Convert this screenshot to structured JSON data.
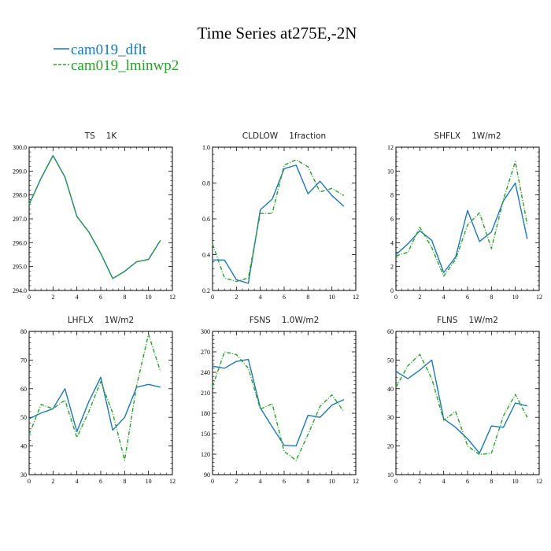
{
  "figure": {
    "title": "Time Series at275E,-2N",
    "legend": [
      {
        "label": "cam019_dflt",
        "color": "#1f77b4",
        "dash": false
      },
      {
        "label": "cam019_lminwp2",
        "color": "#2ca02c",
        "dash": true
      }
    ]
  },
  "chart_data": [
    {
      "type": "line",
      "title": "TS",
      "units": "1K",
      "xlim": [
        0,
        12
      ],
      "xticks": [
        0,
        2,
        4,
        6,
        8,
        10,
        12
      ],
      "ylim": [
        294.0,
        300.0
      ],
      "yticks": [
        "294.0",
        "295.0",
        "296.0",
        "297.0",
        "298.0",
        "299.0",
        "300.0"
      ],
      "x": [
        0,
        1,
        2,
        3,
        4,
        5,
        6,
        7,
        8,
        9,
        10,
        11
      ],
      "series": [
        {
          "name": "cam019_dflt",
          "values": [
            297.6,
            298.7,
            299.65,
            298.75,
            297.1,
            296.45,
            295.55,
            294.5,
            294.8,
            295.2,
            295.3,
            296.1
          ]
        },
        {
          "name": "cam019_lminwp2",
          "values": [
            297.6,
            298.7,
            299.65,
            298.75,
            297.1,
            296.45,
            295.55,
            294.5,
            294.8,
            295.2,
            295.3,
            296.1
          ]
        }
      ]
    },
    {
      "type": "line",
      "title": "CLDLOW",
      "units": "1fraction",
      "xlim": [
        0,
        12
      ],
      "xticks": [
        0,
        2,
        4,
        6,
        8,
        10,
        12
      ],
      "ylim": [
        0.2,
        1.0
      ],
      "yticks": [
        "0.2",
        "0.4",
        "0.6",
        "0.8",
        "1.0"
      ],
      "x": [
        0,
        1,
        2,
        3,
        4,
        5,
        6,
        7,
        8,
        9,
        10,
        11
      ],
      "series": [
        {
          "name": "cam019_dflt",
          "values": [
            0.37,
            0.37,
            0.26,
            0.24,
            0.65,
            0.71,
            0.88,
            0.9,
            0.74,
            0.81,
            0.73,
            0.67
          ]
        },
        {
          "name": "cam019_lminwp2",
          "values": [
            0.46,
            0.27,
            0.25,
            0.27,
            0.63,
            0.63,
            0.9,
            0.93,
            0.89,
            0.75,
            0.77,
            0.73
          ]
        }
      ]
    },
    {
      "type": "line",
      "title": "SHFLX",
      "units": "1W/m2",
      "xlim": [
        0,
        12
      ],
      "xticks": [
        0,
        2,
        4,
        6,
        8,
        10,
        12
      ],
      "ylim": [
        0,
        12
      ],
      "yticks": [
        "0",
        "2",
        "4",
        "6",
        "8",
        "10",
        "12"
      ],
      "x": [
        0,
        1,
        2,
        3,
        4,
        5,
        6,
        7,
        8,
        9,
        10,
        11
      ],
      "series": [
        {
          "name": "cam019_dflt",
          "values": [
            3.0,
            3.9,
            5.0,
            4.2,
            1.5,
            2.8,
            6.7,
            4.1,
            4.9,
            7.5,
            9.0,
            4.3
          ]
        },
        {
          "name": "cam019_lminwp2",
          "values": [
            2.9,
            3.2,
            5.3,
            3.6,
            1.2,
            2.6,
            5.5,
            6.5,
            3.5,
            7.6,
            10.8,
            5.5
          ]
        }
      ]
    },
    {
      "type": "line",
      "title": "LHFLX",
      "units": "1W/m2",
      "xlim": [
        0,
        12
      ],
      "xticks": [
        0,
        2,
        4,
        6,
        8,
        10,
        12
      ],
      "ylim": [
        30,
        80
      ],
      "yticks": [
        "30",
        "40",
        "50",
        "60",
        "70",
        "80"
      ],
      "x": [
        0,
        1,
        2,
        3,
        4,
        5,
        6,
        7,
        8,
        9,
        10,
        11
      ],
      "series": [
        {
          "name": "cam019_dflt",
          "values": [
            49.5,
            51.5,
            53.0,
            60.0,
            45.0,
            55.5,
            64.0,
            45.5,
            50.0,
            60.5,
            61.5,
            60.5
          ]
        },
        {
          "name": "cam019_lminwp2",
          "values": [
            44.0,
            54.5,
            53.0,
            56.0,
            43.0,
            52.0,
            62.5,
            51.5,
            35.0,
            61.0,
            79.0,
            66.0
          ]
        }
      ]
    },
    {
      "type": "line",
      "title": "FSNS",
      "units": "1.0W/m2",
      "xlim": [
        0,
        12
      ],
      "xticks": [
        0,
        2,
        4,
        6,
        8,
        10,
        12
      ],
      "ylim": [
        90,
        300
      ],
      "yticks": [
        "90",
        "120",
        "150",
        "180",
        "210",
        "240",
        "270",
        "300"
      ],
      "x": [
        0,
        1,
        2,
        3,
        4,
        5,
        6,
        7,
        8,
        9,
        10,
        11
      ],
      "series": [
        {
          "name": "cam019_dflt",
          "values": [
            249,
            246,
            256,
            259,
            188,
            160,
            133,
            132,
            177,
            174,
            192,
            200
          ]
        },
        {
          "name": "cam019_lminwp2",
          "values": [
            219,
            270,
            266,
            246,
            186,
            194,
            124,
            111,
            149,
            190,
            207,
            182
          ]
        }
      ]
    },
    {
      "type": "line",
      "title": "FLNS",
      "units": "1W/m2",
      "xlim": [
        0,
        12
      ],
      "xticks": [
        0,
        2,
        4,
        6,
        8,
        10,
        12
      ],
      "ylim": [
        10,
        60
      ],
      "yticks": [
        "10",
        "20",
        "30",
        "40",
        "50",
        "60"
      ],
      "x": [
        0,
        1,
        2,
        3,
        4,
        5,
        6,
        7,
        8,
        9,
        10,
        11
      ],
      "series": [
        {
          "name": "cam019_dflt",
          "values": [
            46.0,
            43.5,
            46.5,
            50.0,
            29.5,
            26.5,
            22.5,
            17.5,
            27.0,
            26.5,
            35.0,
            34.0
          ]
        },
        {
          "name": "cam019_lminwp2",
          "values": [
            40.5,
            48.0,
            52.0,
            43.5,
            29.0,
            32.0,
            20.0,
            17.0,
            17.5,
            30.5,
            38.0,
            30.0
          ]
        }
      ]
    }
  ]
}
